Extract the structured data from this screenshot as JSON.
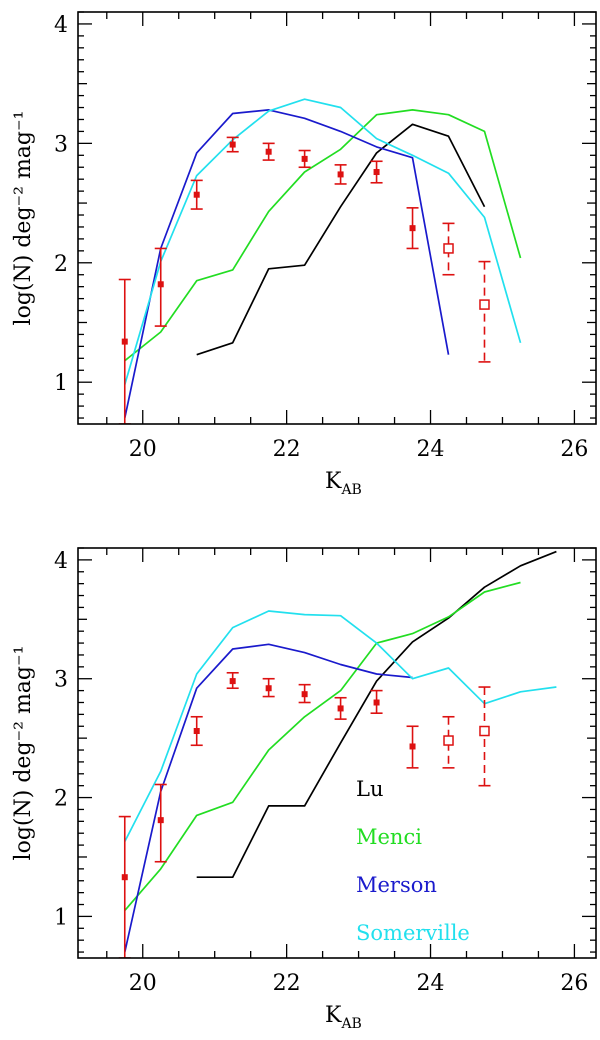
{
  "chart_data": [
    {
      "type": "line",
      "panel": "top",
      "xlabel": "K",
      "xlabel_sub": "AB",
      "ylabel": "log(N) deg⁻² mag⁻¹",
      "xlim": [
        19.1,
        26.3
      ],
      "ylim": [
        0.65,
        4.1
      ],
      "xticks": [
        20,
        22,
        24,
        26
      ],
      "yticks": [
        1,
        2,
        3,
        4
      ],
      "series": [
        {
          "name": "Lu",
          "color": "#000000",
          "x": [
            20.75,
            21.25,
            21.75,
            22.25,
            22.75,
            23.25,
            23.75,
            24.25,
            24.75
          ],
          "y": [
            1.23,
            1.33,
            1.95,
            1.98,
            2.47,
            2.92,
            3.16,
            3.06,
            2.47
          ]
        },
        {
          "name": "Menci",
          "color": "#22dd22",
          "x": [
            19.75,
            20.25,
            20.75,
            21.25,
            21.75,
            22.25,
            22.75,
            23.25,
            23.75,
            24.25,
            24.75,
            25.25
          ],
          "y": [
            1.18,
            1.42,
            1.85,
            1.94,
            2.43,
            2.76,
            2.95,
            3.24,
            3.28,
            3.24,
            3.1,
            2.04
          ]
        },
        {
          "name": "Merson",
          "color": "#1a1acc",
          "x": [
            19.75,
            20.25,
            20.75,
            21.25,
            21.75,
            22.25,
            22.75,
            23.25,
            23.75,
            24.25
          ],
          "y": [
            0.7,
            2.12,
            2.92,
            3.25,
            3.28,
            3.21,
            3.1,
            2.97,
            2.88,
            1.23
          ]
        },
        {
          "name": "Somerville",
          "color": "#22e0ee",
          "x": [
            19.75,
            20.25,
            20.75,
            21.25,
            21.75,
            22.25,
            22.75,
            23.25,
            23.75,
            24.25,
            24.75,
            25.25
          ],
          "y": [
            0.98,
            2.01,
            2.73,
            3.03,
            3.27,
            3.37,
            3.3,
            3.04,
            2.9,
            2.75,
            2.38,
            1.33
          ]
        }
      ],
      "points": {
        "name": "data",
        "color": "#dd1111",
        "x": [
          19.75,
          20.25,
          20.75,
          21.25,
          21.75,
          22.25,
          22.75,
          23.25,
          23.75,
          24.25,
          24.75
        ],
        "y": [
          1.34,
          1.82,
          2.57,
          2.99,
          2.93,
          2.87,
          2.74,
          2.76,
          2.29,
          2.12,
          1.65
        ],
        "err_low": [
          0.65,
          1.47,
          2.45,
          2.93,
          2.86,
          2.8,
          2.66,
          2.67,
          2.12,
          1.9,
          1.17
        ],
        "err_high": [
          1.86,
          2.12,
          2.69,
          3.05,
          3.0,
          2.94,
          2.82,
          2.85,
          2.46,
          2.33,
          2.01
        ],
        "open": [
          false,
          false,
          false,
          false,
          false,
          false,
          false,
          false,
          false,
          true,
          true
        ]
      }
    },
    {
      "type": "line",
      "panel": "bottom",
      "xlabel": "K",
      "xlabel_sub": "AB",
      "ylabel": "log(N) deg⁻² mag⁻¹",
      "xlim": [
        19.1,
        26.3
      ],
      "ylim": [
        0.65,
        4.1
      ],
      "xticks": [
        20,
        22,
        24,
        26
      ],
      "yticks": [
        1,
        2,
        3,
        4
      ],
      "series": [
        {
          "name": "Lu",
          "color": "#000000",
          "x": [
            20.75,
            21.25,
            21.75,
            22.25,
            22.75,
            23.25,
            23.75,
            24.25,
            24.75,
            25.25,
            25.75
          ],
          "y": [
            1.33,
            1.33,
            1.93,
            1.93,
            2.46,
            2.98,
            3.31,
            3.51,
            3.77,
            3.95,
            4.07
          ]
        },
        {
          "name": "Menci",
          "color": "#22dd22",
          "x": [
            19.75,
            20.25,
            20.75,
            21.25,
            21.75,
            22.25,
            22.75,
            23.25,
            23.75,
            24.25,
            24.75,
            25.25
          ],
          "y": [
            1.05,
            1.4,
            1.85,
            1.96,
            2.4,
            2.68,
            2.9,
            3.3,
            3.38,
            3.52,
            3.73,
            3.81
          ]
        },
        {
          "name": "Merson",
          "color": "#1a1acc",
          "x": [
            19.75,
            20.25,
            20.75,
            21.25,
            21.75,
            22.25,
            22.75,
            23.25,
            23.75
          ],
          "y": [
            0.7,
            2.05,
            2.92,
            3.25,
            3.29,
            3.22,
            3.12,
            3.04,
            3.01
          ]
        },
        {
          "name": "Somerville",
          "color": "#22e0ee",
          "x": [
            19.75,
            20.25,
            20.75,
            21.25,
            21.75,
            22.25,
            22.75,
            23.25,
            23.75,
            24.25,
            24.75,
            25.25,
            25.75
          ],
          "y": [
            1.63,
            2.22,
            3.04,
            3.43,
            3.57,
            3.54,
            3.53,
            3.3,
            3.0,
            3.09,
            2.79,
            2.89,
            2.93
          ]
        }
      ],
      "points": {
        "name": "data",
        "color": "#dd1111",
        "x": [
          19.75,
          20.25,
          20.75,
          21.25,
          21.75,
          22.25,
          22.75,
          23.25,
          23.75,
          24.25,
          24.75
        ],
        "y": [
          1.33,
          1.81,
          2.56,
          2.98,
          2.92,
          2.87,
          2.75,
          2.8,
          2.43,
          2.48,
          2.56
        ],
        "err_low": [
          0.65,
          1.46,
          2.44,
          2.92,
          2.85,
          2.8,
          2.66,
          2.71,
          2.25,
          2.25,
          2.1
        ],
        "err_high": [
          1.84,
          2.11,
          2.68,
          3.05,
          3.0,
          2.95,
          2.84,
          2.9,
          2.6,
          2.68,
          2.93
        ],
        "open": [
          false,
          false,
          false,
          false,
          false,
          false,
          false,
          false,
          false,
          true,
          true
        ]
      },
      "legend": {
        "placement": "lower-center",
        "entries": [
          {
            "label": "Lu",
            "color": "#000000"
          },
          {
            "label": "Menci",
            "color": "#22dd22"
          },
          {
            "label": "Merson",
            "color": "#1a1acc"
          },
          {
            "label": "Somerville",
            "color": "#22e0ee"
          }
        ]
      }
    }
  ]
}
